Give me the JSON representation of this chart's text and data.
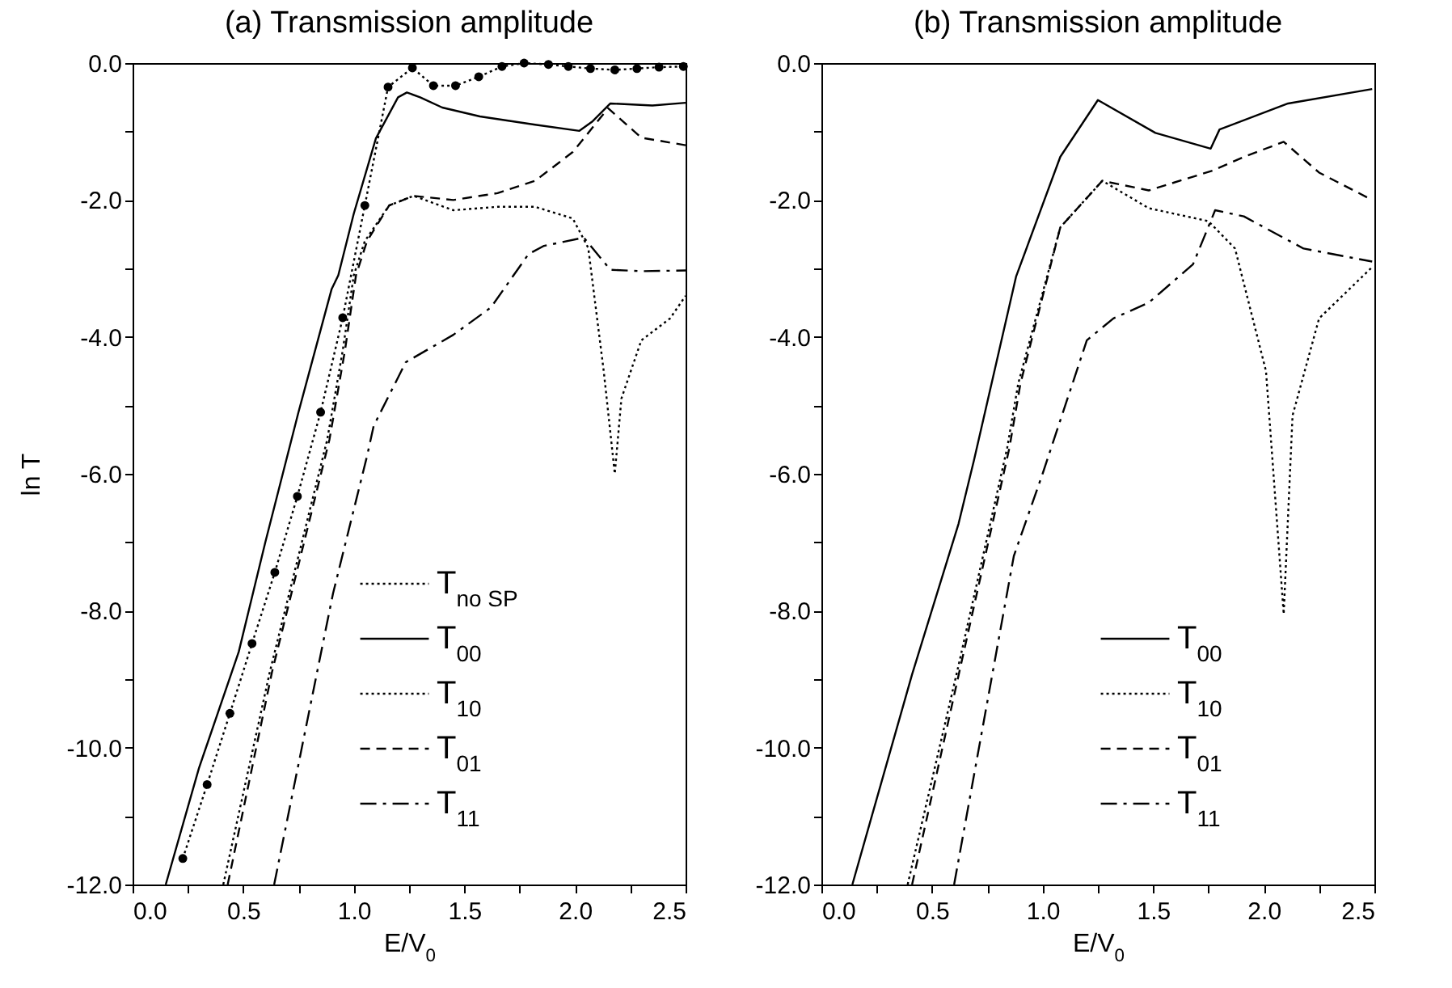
{
  "chart_data": [
    {
      "type": "line",
      "title": "(a) Transmission amplitude",
      "xlabel": "E/V$_{0}$",
      "ylabel": "ln T",
      "xlim": [
        0,
        2.5
      ],
      "ylim": [
        -12,
        0
      ],
      "legend": "bottom right",
      "xticks": [
        {
          "value": 0,
          "label": "0.0"
        },
        {
          "value": 0.25,
          "label": null
        },
        {
          "value": 0.5,
          "label": "0.5"
        },
        {
          "value": 0.75,
          "label": null
        },
        {
          "value": 1,
          "label": "1.0"
        },
        {
          "value": 1.25,
          "label": null
        },
        {
          "value": 1.5,
          "label": "1.5"
        },
        {
          "value": 1.75,
          "label": null
        },
        {
          "value": 2,
          "label": "2.0"
        },
        {
          "value": 2.25,
          "label": null
        },
        {
          "value": 2.5,
          "label": "2.5"
        }
      ],
      "yticks": [
        {
          "value": -12,
          "label": "-12.0"
        },
        {
          "value": -11,
          "label": null
        },
        {
          "value": -10,
          "label": "-10.0"
        },
        {
          "value": -9,
          "label": null
        },
        {
          "value": -8,
          "label": "-8.0"
        },
        {
          "value": -7,
          "label": null
        },
        {
          "value": -6,
          "label": "-6.0"
        },
        {
          "value": -5,
          "label": null
        },
        {
          "value": -4,
          "label": "-4.0"
        },
        {
          "value": -3,
          "label": null
        },
        {
          "value": -2,
          "label": "-2.0"
        },
        {
          "value": -1,
          "label": null
        },
        {
          "value": 0,
          "label": "0.0"
        }
      ],
      "series": [
        {
          "name": "T$_{no SP}$",
          "color": "#000000",
          "line_style": "dotted",
          "marker": "circle",
          "x": [
            0.227,
            0.337,
            0.44,
            0.54,
            0.643,
            0.745,
            0.85,
            0.95,
            1.05,
            1.155,
            1.265,
            1.36,
            1.46,
            1.565,
            1.67,
            1.77,
            1.88,
            1.97,
            2.07,
            2.18,
            2.28,
            2.38,
            2.49
          ],
          "values": [
            -11.62,
            -10.54,
            -9.5,
            -8.48,
            -7.44,
            -6.33,
            -5.1,
            -3.72,
            -2.08,
            -0.35,
            -0.07,
            -0.33,
            -0.33,
            -0.2,
            -0.05,
            0,
            -0.02,
            -0.05,
            -0.08,
            -0.1,
            -0.08,
            -0.06,
            -0.05
          ]
        },
        {
          "name": "T$_{00}$",
          "color": "#000000",
          "line_style": "solid",
          "x": [
            0.15,
            0.3,
            0.48,
            0.6,
            0.75,
            0.9,
            0.93,
            1.0,
            1.1,
            1.2,
            1.24,
            1.3,
            1.4,
            1.57,
            1.82,
            2.02,
            2.08,
            2.16,
            2.35,
            2.5
          ],
          "values": [
            -12,
            -10.3,
            -8.6,
            -7.0,
            -5.1,
            -3.3,
            -3.1,
            -2.2,
            -1.1,
            -0.5,
            -0.43,
            -0.5,
            -0.65,
            -0.78,
            -0.9,
            -0.99,
            -0.85,
            -0.59,
            -0.62,
            -0.58
          ]
        },
        {
          "name": "T$_{10}$",
          "color": "#000000",
          "line_style": "dotted",
          "x": [
            0.41,
            0.62,
            0.88,
            0.95,
            1.0,
            1.05,
            1.16,
            1.27,
            1.45,
            1.65,
            1.82,
            1.99,
            2.06,
            2.13,
            2.18,
            2.21,
            2.3,
            2.43,
            2.5
          ],
          "values": [
            -12,
            -8.9,
            -5.5,
            -4.2,
            -3.1,
            -2.6,
            -2.08,
            -1.94,
            -2.15,
            -2.1,
            -2.1,
            -2.27,
            -2.7,
            -4.5,
            -6.0,
            -4.9,
            -4.05,
            -3.73,
            -3.4
          ]
        },
        {
          "name": "T$_{01}$",
          "color": "#000000",
          "line_style": "dashed",
          "x": [
            0.43,
            0.63,
            0.89,
            0.96,
            1.01,
            1.06,
            1.16,
            1.27,
            1.45,
            1.65,
            1.82,
            1.99,
            2.15,
            2.3,
            2.5
          ],
          "values": [
            -12,
            -8.9,
            -5.5,
            -4.2,
            -3.1,
            -2.6,
            -2.08,
            -1.94,
            -2.0,
            -1.9,
            -1.72,
            -1.3,
            -0.66,
            -1.09,
            -1.2
          ]
        },
        {
          "name": "T$_{11}$",
          "color": "#000000",
          "line_style": "dashdot",
          "x": [
            0.64,
            0.906,
            1.06,
            1.09,
            1.235,
            1.45,
            1.62,
            1.79,
            1.86,
            2.04,
            2.16,
            2.3,
            2.5
          ],
          "values": [
            -12,
            -7.75,
            -5.74,
            -5.3,
            -4.37,
            -3.97,
            -3.57,
            -2.79,
            -2.67,
            -2.55,
            -3.02,
            -3.04,
            -3.03
          ]
        }
      ]
    },
    {
      "type": "line",
      "title": "(b) Transmission amplitude",
      "xlabel": "E/V$_{0}$",
      "xlim": [
        0,
        2.5
      ],
      "ylim": [
        -12,
        0
      ],
      "legend": "bottom right",
      "xticks": [
        {
          "value": 0,
          "label": "0.0"
        },
        {
          "value": 0.25,
          "label": null
        },
        {
          "value": 0.5,
          "label": "0.5"
        },
        {
          "value": 0.75,
          "label": null
        },
        {
          "value": 1,
          "label": "1.0"
        },
        {
          "value": 1.25,
          "label": null
        },
        {
          "value": 1.5,
          "label": "1.5"
        },
        {
          "value": 1.75,
          "label": null
        },
        {
          "value": 2,
          "label": "2.0"
        },
        {
          "value": 2.25,
          "label": null
        },
        {
          "value": 2.5,
          "label": "2.5"
        }
      ],
      "yticks": [
        {
          "value": -12,
          "label": "-12.0"
        },
        {
          "value": -11,
          "label": null
        },
        {
          "value": -10,
          "label": "-10.0"
        },
        {
          "value": -9,
          "label": null
        },
        {
          "value": -8,
          "label": "-8.0"
        },
        {
          "value": -7,
          "label": null
        },
        {
          "value": -6,
          "label": "-6.0"
        },
        {
          "value": -5,
          "label": null
        },
        {
          "value": -4,
          "label": "-4.0"
        },
        {
          "value": -3,
          "label": null
        },
        {
          "value": -2,
          "label": "-2.0"
        },
        {
          "value": -1,
          "label": null
        },
        {
          "value": 0,
          "label": "0.0"
        }
      ],
      "series": [
        {
          "name": "T$_{00}$",
          "color": "#000000",
          "line_style": "solid",
          "x": [
            0.14,
            0.41,
            0.62,
            0.69,
            0.88,
            1.08,
            1.25,
            1.51,
            1.76,
            1.8,
            2.11,
            2.49
          ],
          "values": [
            -12,
            -8.93,
            -6.73,
            -5.8,
            -3.12,
            -1.37,
            -0.54,
            -1.02,
            -1.25,
            -0.97,
            -0.59,
            -0.38
          ]
        },
        {
          "name": "T$_{10}$",
          "color": "#000000",
          "line_style": "dotted",
          "x": [
            0.39,
            0.62,
            0.84,
            0.89,
            1.08,
            1.27,
            1.48,
            1.75,
            1.87,
            2.01,
            2.09,
            2.13,
            2.25,
            2.49
          ],
          "values": [
            -12,
            -8.8,
            -5.62,
            -4.68,
            -2.4,
            -1.72,
            -2.12,
            -2.31,
            -2.71,
            -4.5,
            -8.05,
            -5.15,
            -3.73,
            -2.98
          ]
        },
        {
          "name": "T$_{01}$",
          "color": "#000000",
          "line_style": "dashed",
          "x": [
            0.41,
            0.63,
            0.85,
            0.9,
            1.08,
            1.27,
            1.48,
            1.77,
            1.91,
            2.09,
            2.25,
            2.49
          ],
          "values": [
            -12,
            -8.8,
            -5.62,
            -4.68,
            -2.4,
            -1.72,
            -1.86,
            -1.57,
            -1.37,
            -1.15,
            -1.6,
            -2.0
          ]
        },
        {
          "name": "T$_{11}$",
          "color": "#000000",
          "line_style": "dashdot",
          "x": [
            0.6,
            0.87,
            1.0,
            1.2,
            1.32,
            1.48,
            1.68,
            1.78,
            1.91,
            2.18,
            2.49
          ],
          "values": [
            -12,
            -7.2,
            -6.0,
            -4.05,
            -3.73,
            -3.5,
            -2.94,
            -2.15,
            -2.24,
            -2.71,
            -2.9
          ]
        }
      ]
    }
  ]
}
